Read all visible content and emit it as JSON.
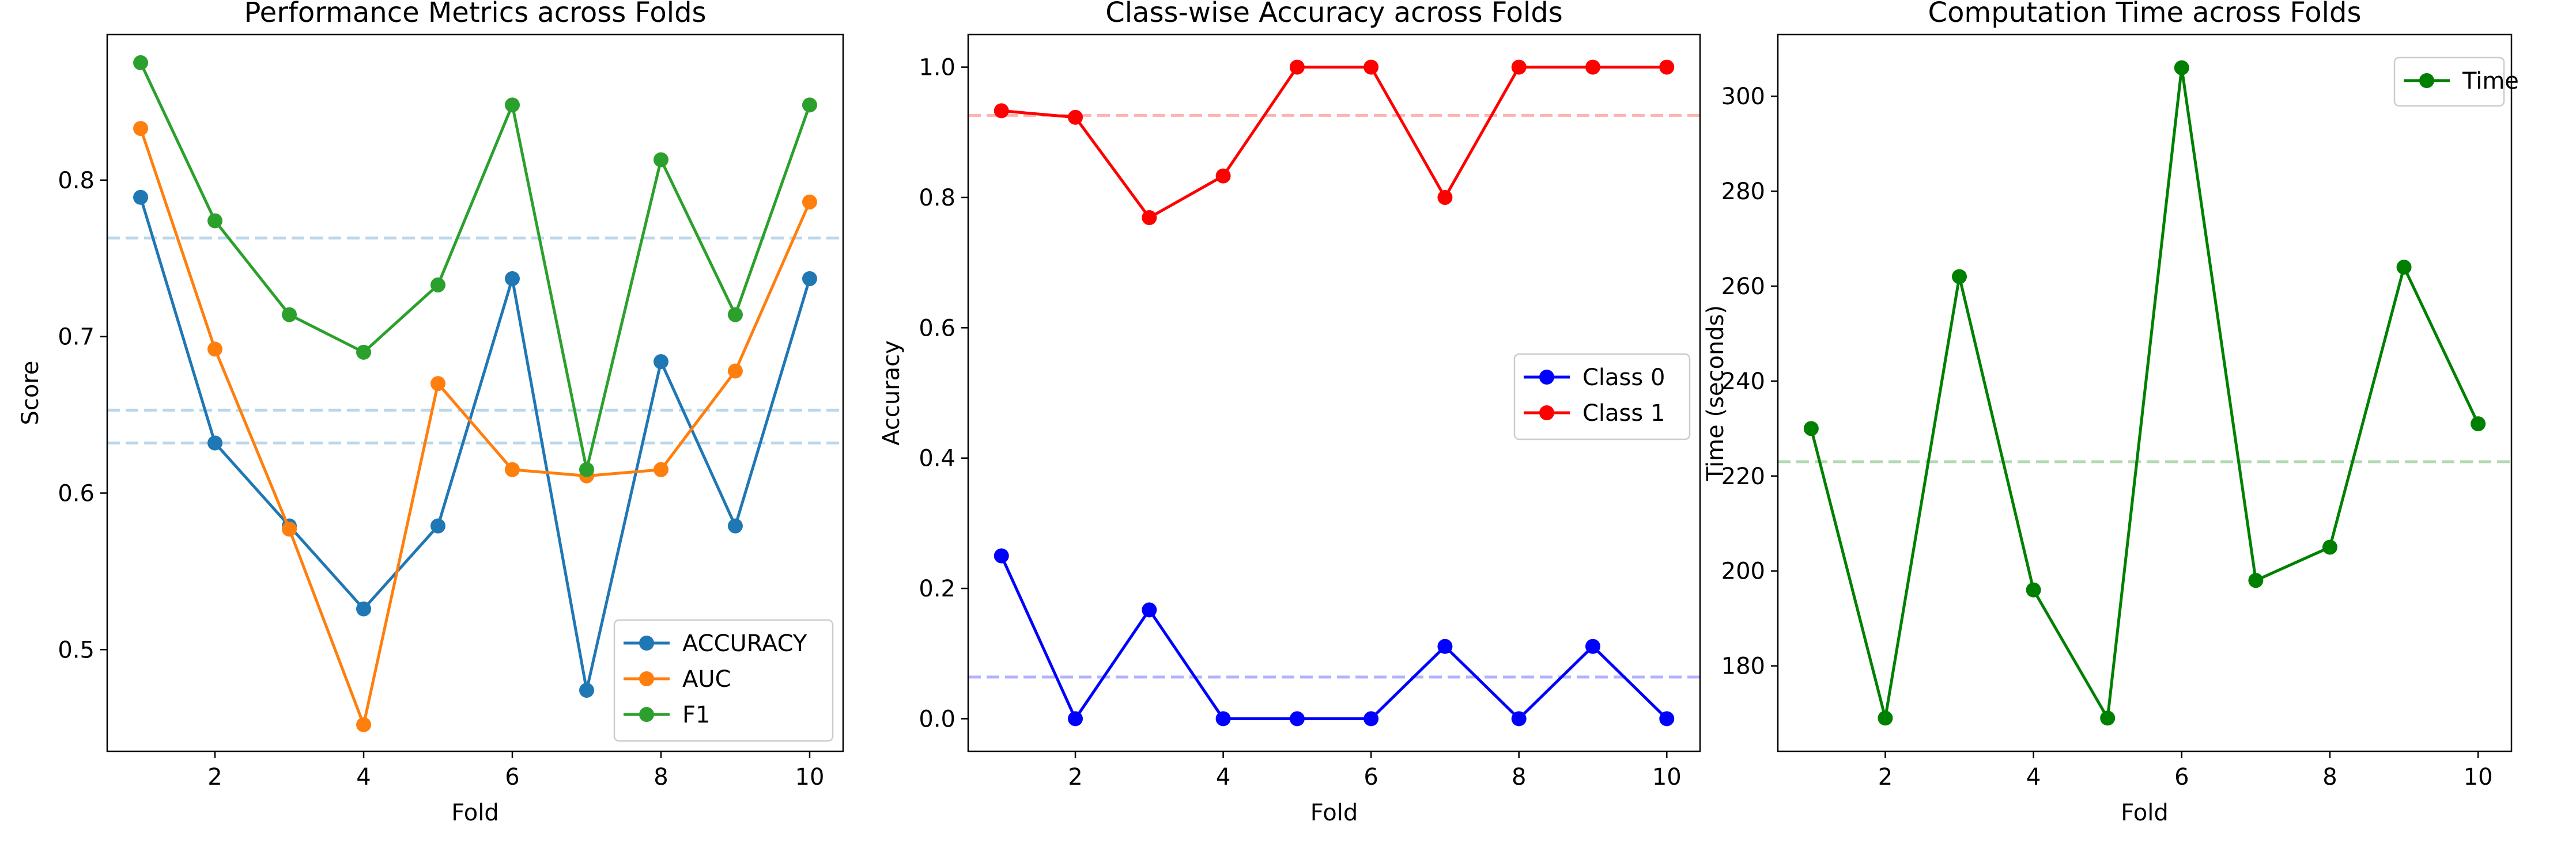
{
  "chart_data": [
    {
      "type": "line",
      "title": "Performance Metrics across Folds",
      "xlabel": "Fold",
      "ylabel": "Score",
      "x": [
        1,
        2,
        3,
        4,
        5,
        6,
        7,
        8,
        9,
        10
      ],
      "xlim": [
        0.55,
        10.45
      ],
      "ylim": [
        0.435,
        0.893
      ],
      "xticks": [
        2,
        4,
        6,
        8,
        10
      ],
      "yticks": [
        0.5,
        0.6,
        0.7,
        0.8
      ],
      "yticklabels": [
        "0.5",
        "0.6",
        "0.7",
        "0.8"
      ],
      "legend_position": "lower right",
      "series": [
        {
          "name": "ACCURACY",
          "color": "#1f77b4",
          "values": [
            0.789,
            0.632,
            0.579,
            0.526,
            0.579,
            0.737,
            0.474,
            0.684,
            0.579,
            0.737
          ]
        },
        {
          "name": "AUC",
          "color": "#ff7f0e",
          "values": [
            0.833,
            0.692,
            0.577,
            0.452,
            0.67,
            0.615,
            0.611,
            0.615,
            0.678,
            0.786
          ]
        },
        {
          "name": "F1",
          "color": "#2ca02c",
          "values": [
            0.875,
            0.774,
            0.714,
            0.69,
            0.733,
            0.848,
            0.615,
            0.813,
            0.714,
            0.848
          ]
        }
      ],
      "mean_lines": [
        {
          "value": 0.632,
          "color": "#1f77b4"
        },
        {
          "value": 0.653,
          "color": "#1f77b4"
        },
        {
          "value": 0.763,
          "color": "#1f77b4"
        }
      ]
    },
    {
      "type": "line",
      "title": "Class-wise Accuracy across Folds",
      "xlabel": "Fold",
      "ylabel": "Accuracy",
      "x": [
        1,
        2,
        3,
        4,
        5,
        6,
        7,
        8,
        9,
        10
      ],
      "xlim": [
        0.55,
        10.45
      ],
      "ylim": [
        -0.05,
        1.05
      ],
      "xticks": [
        2,
        4,
        6,
        8,
        10
      ],
      "yticks": [
        0.0,
        0.2,
        0.4,
        0.6,
        0.8,
        1.0
      ],
      "yticklabels": [
        "0.0",
        "0.2",
        "0.4",
        "0.6",
        "0.8",
        "1.0"
      ],
      "legend_position": "center right",
      "series": [
        {
          "name": "Class 0",
          "color": "#0000ff",
          "values": [
            0.25,
            0.0,
            0.167,
            0.0,
            0.0,
            0.0,
            0.111,
            0.0,
            0.111,
            0.0
          ]
        },
        {
          "name": "Class 1",
          "color": "#ff0000",
          "values": [
            0.933,
            0.923,
            0.769,
            0.833,
            1.0,
            1.0,
            0.8,
            1.0,
            1.0,
            1.0
          ]
        }
      ],
      "mean_lines": [
        {
          "value": 0.064,
          "color": "#0000ff"
        },
        {
          "value": 0.926,
          "color": "#ff0000"
        }
      ]
    },
    {
      "type": "line",
      "title": "Computation Time across Folds",
      "xlabel": "Fold",
      "ylabel": "Time (seconds)",
      "x": [
        1,
        2,
        3,
        4,
        5,
        6,
        7,
        8,
        9,
        10
      ],
      "xlim": [
        0.55,
        10.45
      ],
      "ylim": [
        162.0,
        313.0
      ],
      "xticks": [
        2,
        4,
        6,
        8,
        10
      ],
      "yticks": [
        180,
        200,
        220,
        240,
        260,
        280,
        300
      ],
      "yticklabels": [
        "180",
        "200",
        "220",
        "240",
        "260",
        "280",
        "300"
      ],
      "legend_position": "upper right",
      "series": [
        {
          "name": "Time",
          "color": "#008000",
          "values": [
            230,
            169,
            262,
            196,
            169,
            306,
            198,
            205,
            264,
            231
          ]
        }
      ],
      "mean_lines": [
        {
          "value": 223,
          "color": "#008000"
        }
      ]
    }
  ]
}
